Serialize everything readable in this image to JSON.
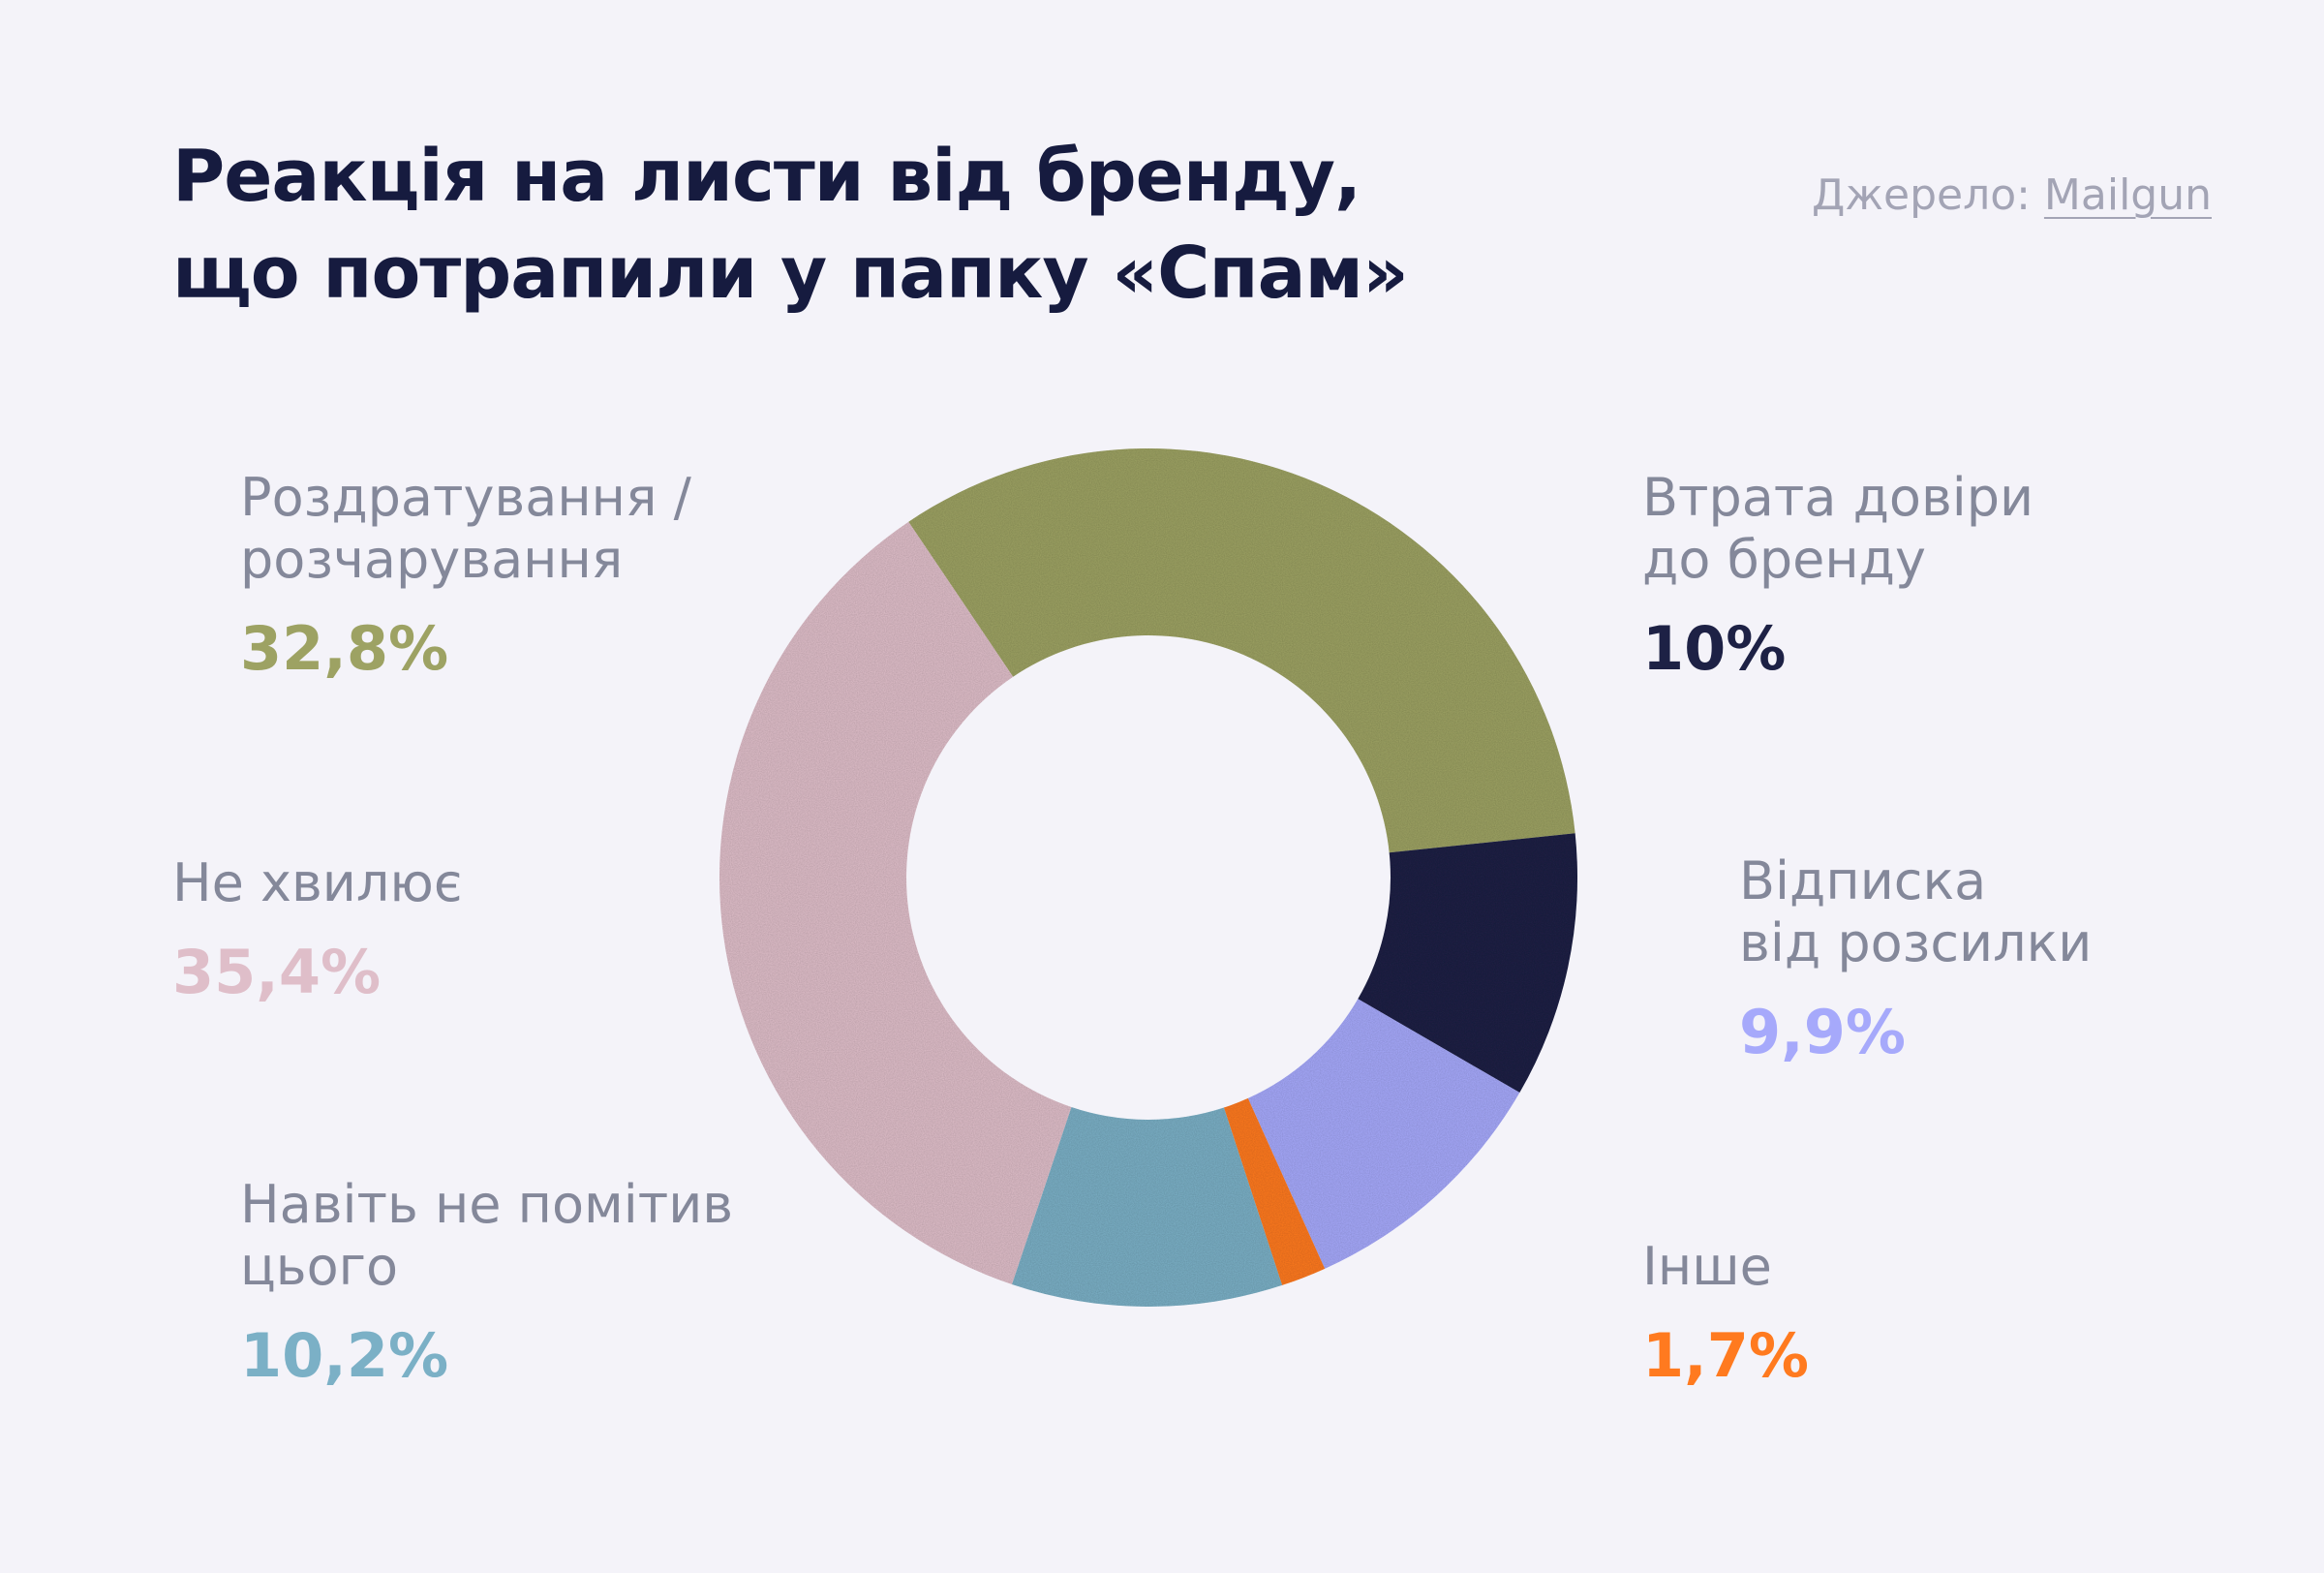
{
  "title": {
    "line1": "Реакція на листи від бренду,",
    "line2": "що потрапили у папку «Спам»"
  },
  "source": {
    "prefix": "Джерело: ",
    "link": "Mailgun"
  },
  "colors": {
    "background": "#f4f3f9",
    "title": "#161b3f"
  },
  "chart_data": {
    "type": "pie",
    "variant": "donut",
    "title": "Реакція на листи від бренду, що потрапили у папку «Спам»",
    "slices": [
      {
        "label_lines": [
          "Роздратування /",
          "розчарування"
        ],
        "value": 32.8,
        "display": "32,8%",
        "color": "#9da263"
      },
      {
        "label_lines": [
          "Втрата довіри",
          "до бренду"
        ],
        "value": 10,
        "display": "10%",
        "color": "#1d2145"
      },
      {
        "label_lines": [
          "Відписка",
          "від розсилки"
        ],
        "value": 9.9,
        "display": "9,9%",
        "color": "#a6a9fb"
      },
      {
        "label_lines": [
          "Інше"
        ],
        "value": 1.7,
        "display": "1,7%",
        "color": "#ff7a1f"
      },
      {
        "label_lines": [
          "Навіть не помітив",
          "цього"
        ],
        "value": 10.2,
        "display": "10,2%",
        "color": "#7bb0c6"
      },
      {
        "label_lines": [
          "Не хвилює"
        ],
        "value": 35.4,
        "display": "35,4%",
        "color": "#dfbec9"
      }
    ]
  }
}
